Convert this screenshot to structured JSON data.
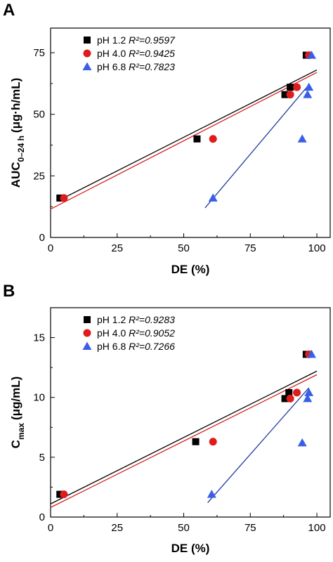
{
  "chart_data": [
    {
      "type": "scatter",
      "panel": "A",
      "title": "",
      "xlabel": "DE (%)",
      "ylabel": {
        "main": "AUC",
        "sub": "0–24 h",
        "unit": "(μg·h/mL)"
      },
      "xlim": [
        0,
        105
      ],
      "ylim": [
        0,
        85
      ],
      "xticks": [
        "0",
        "25",
        "50",
        "75",
        "100"
      ],
      "yticks": [
        "0",
        "25",
        "50",
        "75"
      ],
      "legend_position": "top-left",
      "series": [
        {
          "name": "pH 1.2",
          "r2_label": "R²=0.9597",
          "marker": "square",
          "color": "#000000",
          "line_color": "#000000",
          "points": [
            [
              3.5,
              16
            ],
            [
              55,
              40
            ],
            [
              88,
              58
            ],
            [
              90,
              61
            ],
            [
              96,
              74
            ]
          ],
          "fit": {
            "x": [
              3,
              100
            ],
            "y": [
              15,
              68
            ]
          }
        },
        {
          "name": "pH 4.0",
          "r2_label": "R²=0.9425",
          "marker": "circle",
          "color": "#e01b1b",
          "line_color": "#d42020",
          "points": [
            [
              5,
              16
            ],
            [
              61,
              40
            ],
            [
              90,
              58
            ],
            [
              92.5,
              61
            ],
            [
              97,
              74
            ]
          ],
          "fit": {
            "x": [
              0,
              100
            ],
            "y": [
              11.5,
              67
            ]
          }
        },
        {
          "name": "pH 6.8",
          "r2_label": "R²=0.7823",
          "marker": "triangle",
          "color": "#3a5ee8",
          "line_color": "#1f3a9a",
          "points": [
            [
              61,
              16
            ],
            [
              94.5,
              40
            ],
            [
              96.5,
              58
            ],
            [
              97,
              61
            ],
            [
              98,
              74
            ]
          ],
          "fit": {
            "x": [
              58,
              97
            ],
            "y": [
              12,
              62
            ]
          }
        }
      ]
    },
    {
      "type": "scatter",
      "panel": "B",
      "title": "",
      "xlabel": "DE (%)",
      "ylabel": {
        "main": "C",
        "sub": "max",
        "unit": "(μg/mL)"
      },
      "xlim": [
        0,
        105
      ],
      "ylim": [
        0,
        17.5
      ],
      "xticks": [
        "0",
        "25",
        "50",
        "75",
        "100"
      ],
      "yticks": [
        "0",
        "5",
        "10",
        "15"
      ],
      "legend_position": "top-left",
      "series": [
        {
          "name": "pH 1.2",
          "r2_label": "R²=0.9283",
          "marker": "square",
          "color": "#000000",
          "line_color": "#000000",
          "points": [
            [
              3.5,
              1.9
            ],
            [
              54.5,
              6.3
            ],
            [
              88,
              9.9
            ],
            [
              89.5,
              10.4
            ],
            [
              96,
              13.6
            ]
          ],
          "fit": {
            "x": [
              0,
              100
            ],
            "y": [
              1.1,
              12.2
            ]
          }
        },
        {
          "name": "pH 4.0",
          "r2_label": "R²=0.9052",
          "marker": "circle",
          "color": "#e01b1b",
          "line_color": "#d42020",
          "points": [
            [
              5,
              1.9
            ],
            [
              61,
              6.3
            ],
            [
              90,
              9.9
            ],
            [
              92.5,
              10.4
            ],
            [
              97,
              13.6
            ]
          ],
          "fit": {
            "x": [
              0,
              100
            ],
            "y": [
              0.8,
              11.9
            ]
          }
        },
        {
          "name": "pH 6.8",
          "r2_label": "R²=0.7266",
          "marker": "triangle",
          "color": "#3a5ee8",
          "line_color": "#1f3a9a",
          "points": [
            [
              60.5,
              1.9
            ],
            [
              94.5,
              6.2
            ],
            [
              96.5,
              9.9
            ],
            [
              97,
              10.4
            ],
            [
              98,
              13.6
            ]
          ],
          "fit": {
            "x": [
              59,
              97
            ],
            "y": [
              1.2,
              10.8
            ]
          }
        }
      ]
    }
  ]
}
